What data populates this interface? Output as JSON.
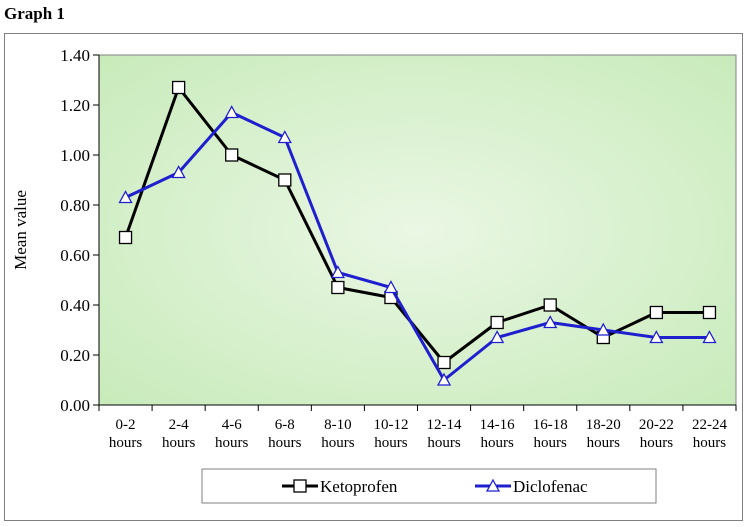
{
  "heading": "Graph 1",
  "chart_data": {
    "type": "line",
    "title": "",
    "xlabel": "",
    "ylabel": "Mean value",
    "ylim": [
      0,
      1.4
    ],
    "yticks": [
      "0.00",
      "0.20",
      "0.40",
      "0.60",
      "0.80",
      "1.00",
      "1.20",
      "1.40"
    ],
    "categories": [
      [
        "0-2",
        "hours"
      ],
      [
        "2-4",
        "hours"
      ],
      [
        "4-6",
        "hours"
      ],
      [
        "6-8",
        "hours"
      ],
      [
        "8-10",
        "hours"
      ],
      [
        "10-12",
        "hours"
      ],
      [
        "12-14",
        "hours"
      ],
      [
        "14-16",
        "hours"
      ],
      [
        "16-18",
        "hours"
      ],
      [
        "18-20",
        "hours"
      ],
      [
        "20-22",
        "hours"
      ],
      [
        "22-24",
        "hours"
      ]
    ],
    "series": [
      {
        "name": "Ketoprofen",
        "color": "#000000",
        "marker": "square",
        "values": [
          0.67,
          1.27,
          1.0,
          0.9,
          0.47,
          0.43,
          0.17,
          0.33,
          0.4,
          0.27,
          0.37,
          0.37
        ]
      },
      {
        "name": "Diclofenac",
        "color": "#1f1fcf",
        "marker": "triangle",
        "values": [
          0.83,
          0.93,
          1.17,
          1.07,
          0.53,
          0.47,
          0.1,
          0.27,
          0.33,
          0.3,
          0.27,
          0.27
        ]
      }
    ],
    "legend_position": "bottom",
    "plot_background": [
      "#eaf7e4",
      "#c6eab8"
    ]
  }
}
